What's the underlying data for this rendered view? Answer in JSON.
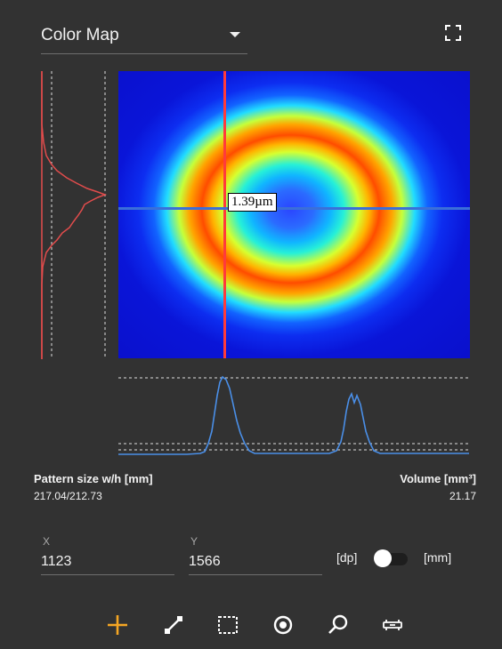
{
  "header": {
    "mode_label": "Color Map",
    "icons": {
      "dropdown": "chevron-down-icon",
      "fullscreen": "fullscreen-icon"
    }
  },
  "heatmap": {
    "cursor_readout": "1.39µm",
    "colormap": "jet",
    "crosshair_color": "#ff3b3b",
    "crosshair_h_color": "#3b6fd8"
  },
  "profiles": {
    "vertical_color": "#e24c4c",
    "horizontal_color": "#4a8fe8"
  },
  "stats": {
    "pattern_size_label": "Pattern size w/h [mm]",
    "pattern_size_value": "217.04/212.73",
    "volume_label": "Volume [mm³]",
    "volume_value": "21.17"
  },
  "coords": {
    "x_label": "X",
    "x_value": "1123",
    "y_label": "Y",
    "y_value": "1566"
  },
  "units": {
    "left_label": "[dp]",
    "right_label": "[mm]",
    "toggle_state": "dp"
  },
  "toolbar": {
    "tools": [
      "add-icon",
      "line-measure-icon",
      "rect-select-icon",
      "target-icon",
      "search-icon",
      "level-icon"
    ],
    "active_tool": "add-icon",
    "accent": "#f5a623"
  }
}
